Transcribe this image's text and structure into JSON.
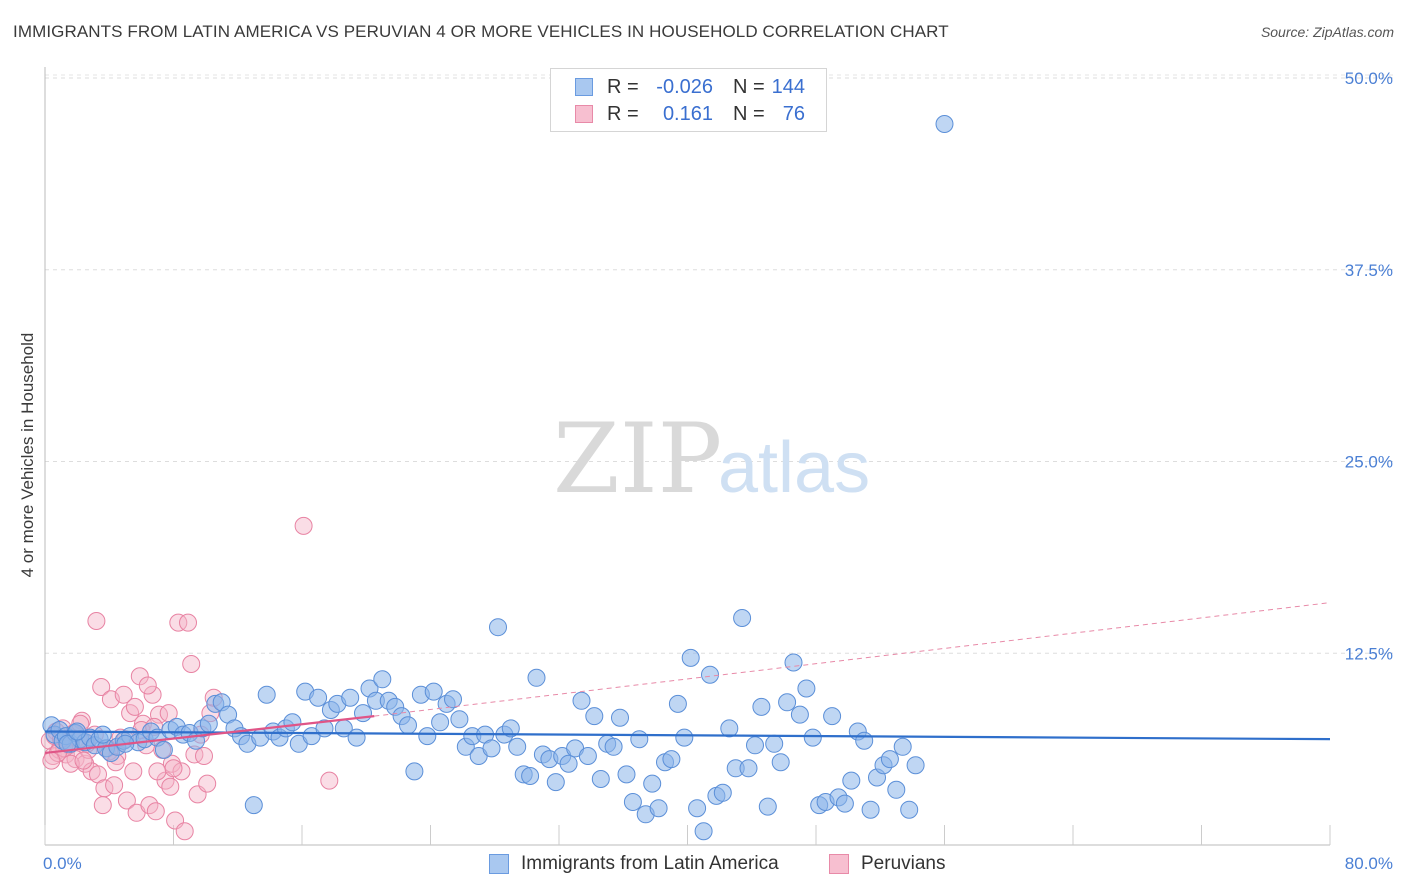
{
  "title": "IMMIGRANTS FROM LATIN AMERICA VS PERUVIAN 4 OR MORE VEHICLES IN HOUSEHOLD CORRELATION CHART",
  "source": "Source: ZipAtlas.com",
  "watermark": {
    "zip": "ZIP",
    "atlas": "atlas"
  },
  "legend": {
    "rows": [
      {
        "r_label": "R =",
        "r_value": "-0.026",
        "n_label": "N =",
        "n_value": "144",
        "color": "#a9c8f0",
        "border": "#6a9be0"
      },
      {
        "r_label": "R =",
        "r_value": "0.161",
        "n_label": "N =",
        "n_value": "76",
        "color": "#f7bfd0",
        "border": "#e88aa8"
      }
    ]
  },
  "bottom_legend": [
    {
      "label": "Immigrants from Latin America",
      "color": "#a9c8f0",
      "border": "#6a9be0"
    },
    {
      "label": "Peruvians",
      "color": "#f7bfd0",
      "border": "#e88aa8"
    }
  ],
  "chart_data": {
    "type": "scatter",
    "title": "IMMIGRANTS FROM LATIN AMERICA VS PERUVIAN 4 OR MORE VEHICLES IN HOUSEHOLD CORRELATION CHART",
    "xlabel": "",
    "ylabel": "4 or more Vehicles in Household",
    "xlim": [
      0,
      80
    ],
    "ylim": [
      0,
      52
    ],
    "x_tick_labels": [
      "0.0%",
      "80.0%"
    ],
    "y_ticks": [
      12.5,
      25.0,
      37.5,
      50.0
    ],
    "y_tick_labels": [
      "12.5%",
      "25.0%",
      "37.5%",
      "50.0%"
    ],
    "grid": true,
    "legend_position": "top-center",
    "series": [
      {
        "name": "Immigrants from Latin America",
        "color": "#8ab4ea",
        "stroke": "#5b8fd8",
        "trend": {
          "x": [
            0,
            80
          ],
          "y": [
            7.4,
            6.9
          ],
          "color": "#2f6fcb"
        },
        "points": [
          [
            0.4,
            7.8
          ],
          [
            0.6,
            7.2
          ],
          [
            0.9,
            7.5
          ],
          [
            1.1,
            6.8
          ],
          [
            1.3,
            7.1
          ],
          [
            1.6,
            6.6
          ],
          [
            1.9,
            7.3
          ],
          [
            2.2,
            6.9
          ],
          [
            2.5,
            6.7
          ],
          [
            2.8,
            7.0
          ],
          [
            3.1,
            6.5
          ],
          [
            3.4,
            6.9
          ],
          [
            3.8,
            6.3
          ],
          [
            4.1,
            6.0
          ],
          [
            4.5,
            6.4
          ],
          [
            4.9,
            6.8
          ],
          [
            5.3,
            7.1
          ],
          [
            5.8,
            6.7
          ],
          [
            6.2,
            6.9
          ],
          [
            6.6,
            7.4
          ],
          [
            7.0,
            7.0
          ],
          [
            7.4,
            6.2
          ],
          [
            7.8,
            7.5
          ],
          [
            8.2,
            7.7
          ],
          [
            8.6,
            7.2
          ],
          [
            9.0,
            7.3
          ],
          [
            9.4,
            6.8
          ],
          [
            9.8,
            7.6
          ],
          [
            10.2,
            7.9
          ],
          [
            10.6,
            9.2
          ],
          [
            11.0,
            9.3
          ],
          [
            11.4,
            8.5
          ],
          [
            11.8,
            7.6
          ],
          [
            12.2,
            7.1
          ],
          [
            12.6,
            6.6
          ],
          [
            13.0,
            2.6
          ],
          [
            13.4,
            7.0
          ],
          [
            13.8,
            9.8
          ],
          [
            14.2,
            7.4
          ],
          [
            14.6,
            7.0
          ],
          [
            15.0,
            7.6
          ],
          [
            15.4,
            8.0
          ],
          [
            15.8,
            6.6
          ],
          [
            16.2,
            10.0
          ],
          [
            16.6,
            7.1
          ],
          [
            17.0,
            9.6
          ],
          [
            17.4,
            7.6
          ],
          [
            17.8,
            8.8
          ],
          [
            18.2,
            9.2
          ],
          [
            18.6,
            7.6
          ],
          [
            19.0,
            9.6
          ],
          [
            19.4,
            7.0
          ],
          [
            19.8,
            8.6
          ],
          [
            20.2,
            10.2
          ],
          [
            20.6,
            9.4
          ],
          [
            21.0,
            10.8
          ],
          [
            21.4,
            9.4
          ],
          [
            21.8,
            9.0
          ],
          [
            22.2,
            8.4
          ],
          [
            22.6,
            7.8
          ],
          [
            23.0,
            4.8
          ],
          [
            23.4,
            9.8
          ],
          [
            23.8,
            7.1
          ],
          [
            24.2,
            10.0
          ],
          [
            24.6,
            8.0
          ],
          [
            25.0,
            9.2
          ],
          [
            25.4,
            9.5
          ],
          [
            25.8,
            8.2
          ],
          [
            26.2,
            6.4
          ],
          [
            26.6,
            7.1
          ],
          [
            27.0,
            5.8
          ],
          [
            27.4,
            7.2
          ],
          [
            27.8,
            6.3
          ],
          [
            28.2,
            14.2
          ],
          [
            28.6,
            7.2
          ],
          [
            29.0,
            7.6
          ],
          [
            29.4,
            6.4
          ],
          [
            29.8,
            4.6
          ],
          [
            30.2,
            4.5
          ],
          [
            30.6,
            10.9
          ],
          [
            31.0,
            5.9
          ],
          [
            31.4,
            5.6
          ],
          [
            31.8,
            4.1
          ],
          [
            32.2,
            5.8
          ],
          [
            32.6,
            5.3
          ],
          [
            33.0,
            6.3
          ],
          [
            33.4,
            9.4
          ],
          [
            33.8,
            5.8
          ],
          [
            34.2,
            8.4
          ],
          [
            34.6,
            4.3
          ],
          [
            35.0,
            6.6
          ],
          [
            35.4,
            6.4
          ],
          [
            35.8,
            8.3
          ],
          [
            36.2,
            4.6
          ],
          [
            36.6,
            2.8
          ],
          [
            37.0,
            6.9
          ],
          [
            37.4,
            2.0
          ],
          [
            37.8,
            4.0
          ],
          [
            38.2,
            2.4
          ],
          [
            38.6,
            5.4
          ],
          [
            39.0,
            5.6
          ],
          [
            39.4,
            9.2
          ],
          [
            39.8,
            7.0
          ],
          [
            40.2,
            12.2
          ],
          [
            40.6,
            2.4
          ],
          [
            41.0,
            0.9
          ],
          [
            41.4,
            11.1
          ],
          [
            41.8,
            3.2
          ],
          [
            42.2,
            3.4
          ],
          [
            42.6,
            7.6
          ],
          [
            43.0,
            5.0
          ],
          [
            43.4,
            14.8
          ],
          [
            43.8,
            5.0
          ],
          [
            44.2,
            6.5
          ],
          [
            44.6,
            9.0
          ],
          [
            45.0,
            2.5
          ],
          [
            45.4,
            6.6
          ],
          [
            45.8,
            5.4
          ],
          [
            46.2,
            9.3
          ],
          [
            46.6,
            11.9
          ],
          [
            47.0,
            8.5
          ],
          [
            47.4,
            10.2
          ],
          [
            47.8,
            7.0
          ],
          [
            48.2,
            2.6
          ],
          [
            48.6,
            2.8
          ],
          [
            49.0,
            8.4
          ],
          [
            49.4,
            3.1
          ],
          [
            49.8,
            2.7
          ],
          [
            50.2,
            4.2
          ],
          [
            50.6,
            7.4
          ],
          [
            51.0,
            6.8
          ],
          [
            51.4,
            2.3
          ],
          [
            51.8,
            4.4
          ],
          [
            52.2,
            5.2
          ],
          [
            52.6,
            5.6
          ],
          [
            53.0,
            3.6
          ],
          [
            53.4,
            6.4
          ],
          [
            53.8,
            2.3
          ],
          [
            54.2,
            5.2
          ],
          [
            56.0,
            47.0
          ],
          [
            1.4,
            6.6
          ],
          [
            2.0,
            7.4
          ],
          [
            3.6,
            7.2
          ],
          [
            5.0,
            6.6
          ]
        ]
      },
      {
        "name": "Peruvians",
        "color": "#f5b3c7",
        "stroke": "#e883a3",
        "trend": {
          "x": [
            0,
            20.5
          ],
          "y": [
            6.0,
            8.4
          ],
          "color": "#e05587"
        },
        "trend_dashed": {
          "x": [
            20.5,
            80
          ],
          "y": [
            8.4,
            15.8
          ],
          "color": "#e88aa8"
        },
        "points": [
          [
            0.3,
            6.8
          ],
          [
            0.5,
            5.8
          ],
          [
            0.7,
            7.4
          ],
          [
            0.9,
            6.2
          ],
          [
            1.1,
            7.6
          ],
          [
            1.3,
            5.9
          ],
          [
            1.5,
            6.5
          ],
          [
            1.7,
            7.0
          ],
          [
            1.9,
            5.6
          ],
          [
            2.1,
            6.9
          ],
          [
            2.3,
            8.1
          ],
          [
            2.5,
            5.3
          ],
          [
            2.7,
            6.2
          ],
          [
            2.9,
            4.8
          ],
          [
            3.1,
            7.2
          ],
          [
            3.3,
            4.6
          ],
          [
            3.5,
            10.3
          ],
          [
            3.7,
            3.7
          ],
          [
            3.9,
            6.3
          ],
          [
            4.1,
            9.5
          ],
          [
            4.3,
            3.9
          ],
          [
            4.5,
            5.8
          ],
          [
            4.7,
            7.0
          ],
          [
            4.9,
            9.8
          ],
          [
            5.1,
            2.9
          ],
          [
            5.3,
            8.6
          ],
          [
            5.5,
            4.8
          ],
          [
            5.7,
            2.1
          ],
          [
            5.9,
            11.0
          ],
          [
            6.1,
            7.9
          ],
          [
            6.3,
            6.5
          ],
          [
            6.5,
            2.6
          ],
          [
            6.7,
            9.8
          ],
          [
            6.9,
            2.2
          ],
          [
            7.1,
            8.5
          ],
          [
            7.3,
            6.2
          ],
          [
            7.5,
            4.2
          ],
          [
            7.7,
            8.6
          ],
          [
            7.9,
            5.3
          ],
          [
            8.1,
            1.6
          ],
          [
            8.3,
            14.5
          ],
          [
            8.5,
            4.8
          ],
          [
            8.7,
            0.9
          ],
          [
            8.9,
            14.5
          ],
          [
            9.1,
            11.8
          ],
          [
            9.3,
            5.9
          ],
          [
            9.5,
            3.3
          ],
          [
            9.7,
            7.2
          ],
          [
            9.9,
            5.8
          ],
          [
            10.1,
            4.0
          ],
          [
            10.3,
            8.6
          ],
          [
            10.5,
            9.6
          ],
          [
            16.1,
            20.8
          ],
          [
            1.2,
            6.3
          ],
          [
            2.6,
            6.6
          ],
          [
            3.2,
            14.6
          ],
          [
            0.8,
            6.0
          ],
          [
            1.6,
            5.3
          ],
          [
            2.4,
            5.5
          ],
          [
            4.0,
            6.1
          ],
          [
            4.4,
            5.4
          ],
          [
            5.6,
            9.0
          ],
          [
            6.0,
            7.5
          ],
          [
            6.4,
            10.4
          ],
          [
            7.0,
            4.8
          ],
          [
            7.8,
            3.8
          ],
          [
            0.4,
            5.5
          ],
          [
            0.6,
            7.1
          ],
          [
            1.0,
            6.9
          ],
          [
            1.8,
            7.3
          ],
          [
            2.2,
            7.9
          ],
          [
            3.6,
            2.6
          ],
          [
            5.0,
            6.9
          ],
          [
            6.8,
            7.7
          ],
          [
            8.0,
            5.0
          ],
          [
            17.7,
            4.2
          ]
        ]
      }
    ]
  }
}
